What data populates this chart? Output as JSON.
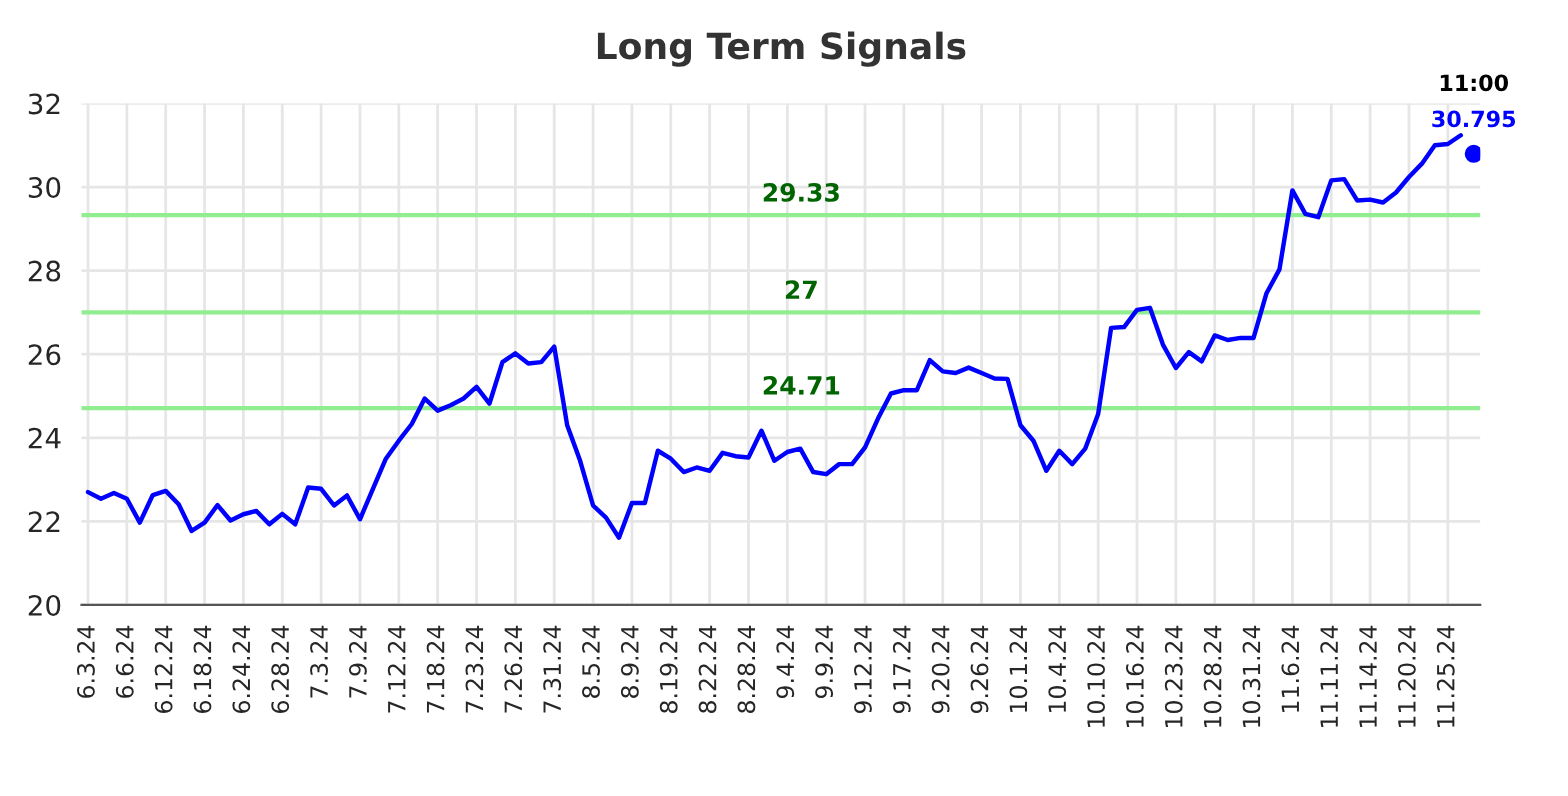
{
  "chart_data": {
    "type": "line",
    "title": "Long Term Signals",
    "categories": [
      "6.3.24",
      null,
      null,
      "6.6.24",
      null,
      null,
      "6.12.24",
      null,
      null,
      "6.18.24",
      null,
      null,
      "6.24.24",
      null,
      null,
      "6.28.24",
      null,
      null,
      "7.3.24",
      null,
      null,
      "7.9.24",
      null,
      null,
      "7.12.24",
      null,
      null,
      "7.18.24",
      null,
      null,
      "7.23.24",
      null,
      null,
      "7.26.24",
      null,
      null,
      "7.31.24",
      null,
      null,
      "8.5.24",
      null,
      null,
      "8.9.24",
      null,
      null,
      "8.19.24",
      null,
      null,
      "8.22.24",
      null,
      null,
      "8.28.24",
      null,
      null,
      "9.4.24",
      null,
      null,
      "9.9.24",
      null,
      null,
      "9.12.24",
      null,
      null,
      "9.17.24",
      null,
      null,
      "9.20.24",
      null,
      null,
      "9.26.24",
      null,
      null,
      "10.1.24",
      null,
      null,
      "10.4.24",
      null,
      null,
      "10.10.24",
      null,
      null,
      "10.16.24",
      null,
      null,
      "10.23.24",
      null,
      null,
      "10.28.24",
      null,
      null,
      "10.31.24",
      null,
      null,
      "11.6.24",
      null,
      null,
      "11.11.24",
      null,
      null,
      "11.14.24",
      null,
      null,
      "11.20.24",
      null,
      null,
      "11.25.24",
      null,
      null
    ],
    "series": [
      {
        "color": "#0000ff",
        "values": [
          22.7,
          22.54,
          22.68,
          22.54,
          21.97,
          22.63,
          22.73,
          22.41,
          21.77,
          21.97,
          22.39,
          22.02,
          22.17,
          22.25,
          21.93,
          22.18,
          21.93,
          22.81,
          22.78,
          22.38,
          22.62,
          22.05,
          22.78,
          23.5,
          23.93,
          24.33,
          24.94,
          24.65,
          24.78,
          24.94,
          25.22,
          24.82,
          25.81,
          26.02,
          25.78,
          25.81,
          26.18,
          24.3,
          23.45,
          22.38,
          22.09,
          21.61,
          22.44,
          22.44,
          23.69,
          23.5,
          23.18,
          23.29,
          23.21,
          23.64,
          23.56,
          23.53,
          24.17,
          23.45,
          23.66,
          23.74,
          23.18,
          23.13,
          23.37,
          23.37,
          23.77,
          24.46,
          25.06,
          25.14,
          25.14,
          25.86,
          25.59,
          25.55,
          25.68,
          25.55,
          25.42,
          25.41,
          24.3,
          23.93,
          23.21,
          23.69,
          23.37,
          23.74,
          24.57,
          26.63,
          26.65,
          27.06,
          27.11,
          26.23,
          25.67,
          26.05,
          25.83,
          26.45,
          26.34,
          26.39,
          26.39,
          27.46,
          28.03,
          29.92,
          29.36,
          29.28,
          30.16,
          30.19,
          29.68,
          29.7,
          29.63,
          29.87,
          30.24,
          30.56,
          31.0,
          31.03,
          31.24,
          null
        ]
      },
      {
        "type": "scatter",
        "color": "#0000ff",
        "values": [
          null,
          null,
          null,
          null,
          null,
          null,
          null,
          null,
          null,
          null,
          null,
          null,
          null,
          null,
          null,
          null,
          null,
          null,
          null,
          null,
          null,
          null,
          null,
          null,
          null,
          null,
          null,
          null,
          null,
          null,
          null,
          null,
          null,
          null,
          null,
          null,
          null,
          null,
          null,
          null,
          null,
          null,
          null,
          null,
          null,
          null,
          null,
          null,
          null,
          null,
          null,
          null,
          null,
          null,
          null,
          null,
          null,
          null,
          null,
          null,
          null,
          null,
          null,
          null,
          null,
          null,
          null,
          null,
          null,
          null,
          null,
          null,
          null,
          null,
          null,
          null,
          null,
          null,
          null,
          null,
          null,
          null,
          null,
          null,
          null,
          null,
          null,
          null,
          null,
          null,
          null,
          null,
          null,
          null,
          null,
          null,
          null,
          null,
          null,
          null,
          null,
          null,
          null,
          null,
          null,
          null,
          null,
          30.795
        ],
        "value_labels": [
          null,
          null,
          null,
          null,
          null,
          null,
          null,
          null,
          null,
          null,
          null,
          null,
          null,
          null,
          null,
          null,
          null,
          null,
          null,
          null,
          null,
          null,
          null,
          null,
          null,
          null,
          null,
          null,
          null,
          null,
          null,
          null,
          null,
          null,
          null,
          null,
          null,
          null,
          null,
          null,
          null,
          null,
          null,
          null,
          null,
          null,
          null,
          null,
          null,
          null,
          null,
          null,
          null,
          null,
          null,
          null,
          null,
          null,
          null,
          null,
          null,
          null,
          null,
          null,
          null,
          null,
          null,
          null,
          null,
          null,
          null,
          null,
          null,
          null,
          null,
          null,
          null,
          null,
          null,
          null,
          null,
          null,
          null,
          null,
          null,
          null,
          null,
          null,
          null,
          null,
          null,
          null,
          null,
          null,
          null,
          null,
          null,
          null,
          null,
          null,
          null,
          null,
          null,
          null,
          null,
          null,
          null,
          "30.795"
        ]
      }
    ],
    "ylim": [
      20,
      32
    ],
    "yticks": [
      20,
      22,
      24,
      26,
      28,
      30,
      32
    ],
    "grid": true,
    "ref_lines": [
      {
        "axis": "y",
        "value": 29.33,
        "label": "29.33",
        "color": "#90ee90"
      },
      {
        "axis": "y",
        "value": 27,
        "label": "27",
        "color": "#90ee90"
      },
      {
        "axis": "y",
        "value": 24.71,
        "label": "24.71",
        "color": "#90ee90"
      }
    ],
    "annotations": [
      "11:00"
    ]
  }
}
